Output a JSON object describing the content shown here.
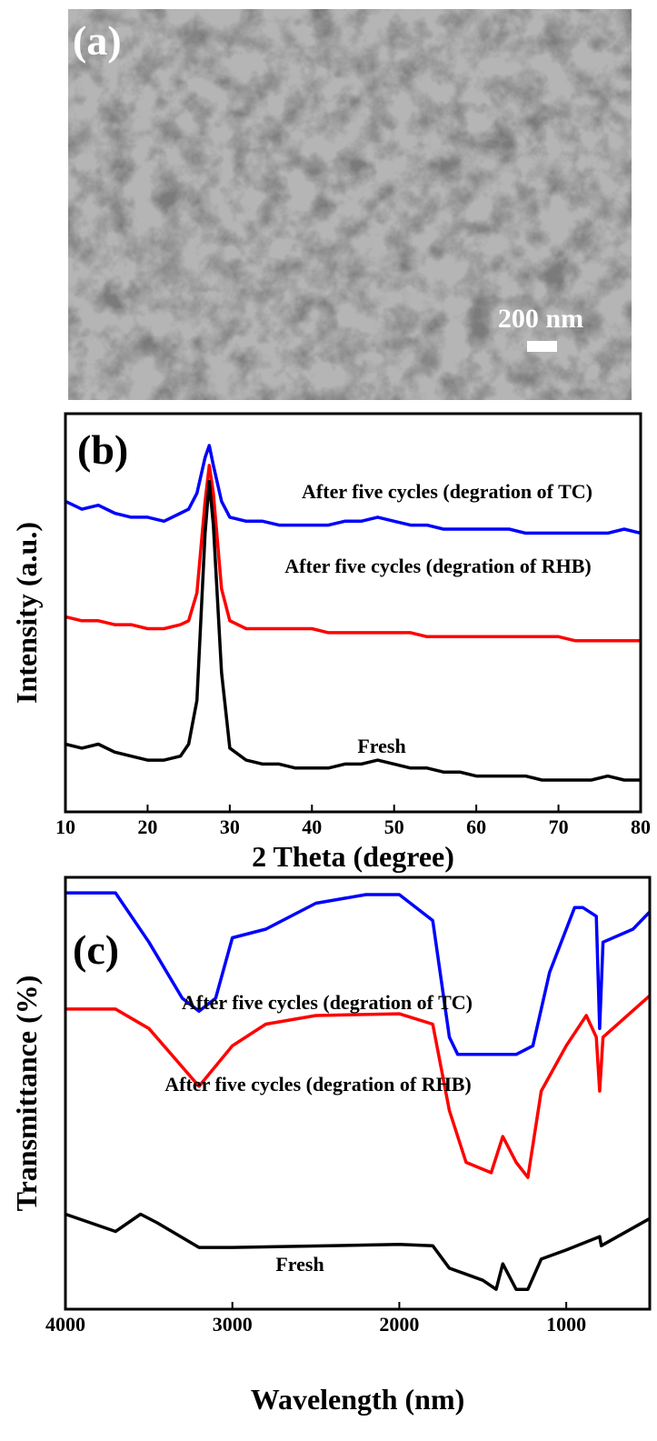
{
  "image": {
    "label": "(a)",
    "scale_bar": "200 nm"
  },
  "chart_data": [
    {
      "type": "line",
      "panel_label": "(b)",
      "x_label": "2 Theta (degree)",
      "y_label": "Intensity (a.u.)",
      "x": [
        10,
        12,
        14,
        16,
        18,
        20,
        22,
        24,
        25,
        26,
        27,
        27.5,
        28,
        29,
        30,
        32,
        34,
        36,
        38,
        40,
        42,
        44,
        46,
        48,
        50,
        52,
        54,
        56,
        58,
        60,
        62,
        64,
        66,
        68,
        70,
        72,
        74,
        76,
        78,
        80
      ],
      "series": [
        {
          "name": "After five cycles (degration of TC)",
          "color": "#0000ff",
          "values": [
            78,
            76,
            77,
            75,
            74,
            74,
            73,
            75,
            76,
            80,
            89,
            92,
            87,
            78,
            74,
            73,
            73,
            72,
            72,
            72,
            72,
            73,
            73,
            74,
            73,
            72,
            72,
            71,
            71,
            71,
            71,
            71,
            70,
            70,
            70,
            70,
            70,
            70,
            71,
            70
          ]
        },
        {
          "name": "After five cycles (degration of RHB)",
          "color": "#ff0000",
          "values": [
            49,
            48,
            48,
            47,
            47,
            46,
            46,
            47,
            48,
            55,
            78,
            87,
            80,
            56,
            48,
            46,
            46,
            46,
            46,
            46,
            45,
            45,
            45,
            45,
            45,
            45,
            44,
            44,
            44,
            44,
            44,
            44,
            44,
            44,
            44,
            43,
            43,
            43,
            43,
            43
          ]
        },
        {
          "name": "Fresh",
          "color": "#000000",
          "values": [
            17,
            16,
            17,
            15,
            14,
            13,
            13,
            14,
            17,
            28,
            70,
            83,
            72,
            35,
            16,
            13,
            12,
            12,
            11,
            11,
            11,
            12,
            12,
            13,
            12,
            11,
            11,
            10,
            10,
            9,
            9,
            9,
            9,
            8,
            8,
            8,
            8,
            9,
            8,
            8
          ]
        }
      ],
      "xlim": [
        10,
        80
      ],
      "xticks": [
        10,
        20,
        30,
        40,
        50,
        60,
        70,
        80
      ],
      "ylim": [
        0,
        100
      ]
    },
    {
      "type": "line",
      "panel_label": "(c)",
      "x_label": "Wavelength (nm)",
      "y_label": "Transmittance (%)",
      "series": [
        {
          "name": "After five cycles (degration of TC)",
          "color": "#0000ff",
          "x": [
            4000,
            3700,
            3500,
            3300,
            3200,
            3100,
            3000,
            2800,
            2500,
            2200,
            2000,
            1800,
            1700,
            1650,
            1500,
            1300,
            1200,
            1100,
            950,
            900,
            820,
            800,
            780,
            600,
            500
          ],
          "values": [
            96.4,
            96.4,
            85,
            72,
            69,
            72,
            86,
            88,
            94,
            96,
            96,
            90,
            63,
            59,
            59,
            59,
            61,
            78,
            93,
            93,
            91,
            65,
            85,
            88,
            92
          ]
        },
        {
          "name": "After five cycles (degration of RHB)",
          "color": "#ff0000",
          "x": [
            4000,
            3700,
            3500,
            3200,
            3000,
            2800,
            2500,
            2000,
            1800,
            1700,
            1600,
            1450,
            1380,
            1300,
            1230,
            1150,
            1000,
            880,
            820,
            800,
            780,
            500
          ],
          "values": [
            69.5,
            69.5,
            65,
            51.6,
            61,
            66,
            68,
            68.4,
            66,
            46,
            34,
            31.6,
            40,
            34,
            30.5,
            50.5,
            61,
            68,
            63,
            50.5,
            63,
            72.6
          ]
        },
        {
          "name": "Fresh",
          "color": "#000000",
          "x": [
            4000,
            3700,
            3550,
            3450,
            3200,
            3000,
            2000,
            1800,
            1700,
            1500,
            1420,
            1380,
            1300,
            1230,
            1150,
            1000,
            800,
            790,
            500
          ],
          "values": [
            22,
            18,
            22,
            20,
            14.3,
            14.3,
            15,
            14.7,
            9.5,
            6.7,
            4.6,
            10.5,
            4.6,
            4.6,
            11.6,
            13.7,
            16.8,
            14.7,
            21
          ]
        }
      ],
      "xlim": [
        4000,
        500
      ],
      "xticks": [
        4000,
        3000,
        2000,
        1000
      ],
      "ylim": [
        0,
        100
      ]
    }
  ]
}
